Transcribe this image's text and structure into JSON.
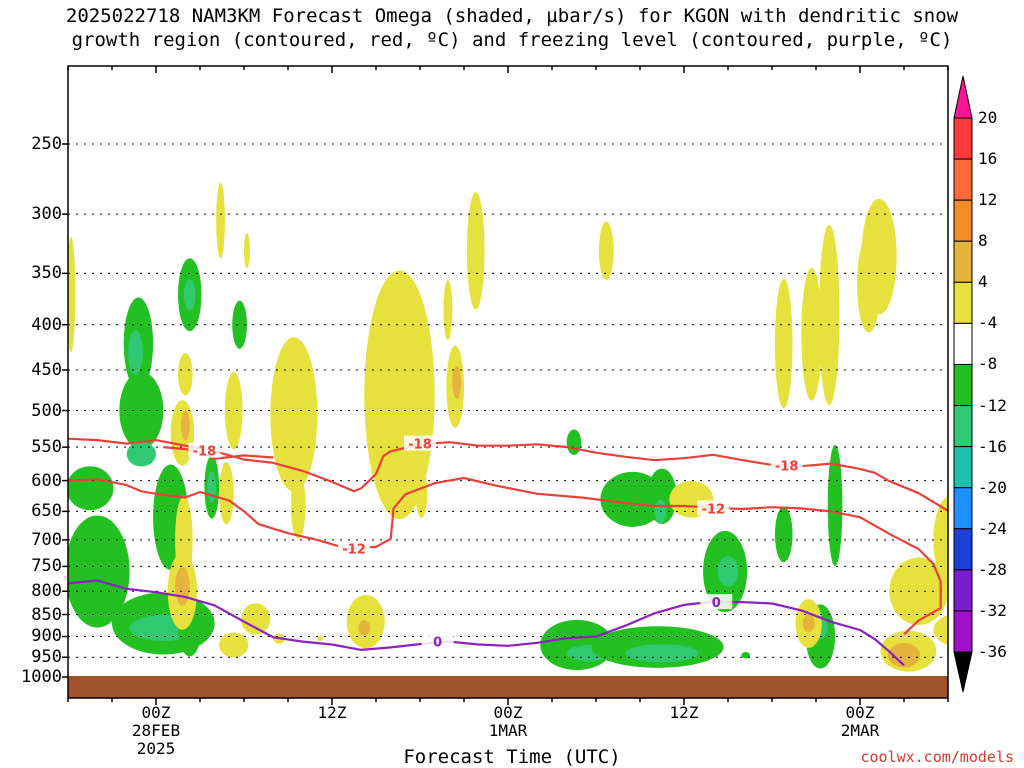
{
  "title": {
    "line1": "2025022718 NAM3KM Forecast Omega (shaded, µbar/s) for KGON with dendritic snow",
    "line2": "growth region (contoured, red, ºC) and freezing level (contoured, purple, ºC)"
  },
  "xaxis": {
    "label": "Forecast Time (UTC)",
    "ticks": [
      {
        "hour": 6,
        "lines": [
          "00Z",
          "28FEB",
          "2025"
        ]
      },
      {
        "hour": 18,
        "lines": [
          "12Z",
          "",
          ""
        ]
      },
      {
        "hour": 30,
        "lines": [
          "00Z",
          "1MAR",
          ""
        ]
      },
      {
        "hour": 42,
        "lines": [
          "12Z",
          "",
          ""
        ]
      },
      {
        "hour": 54,
        "lines": [
          "00Z",
          "2MAR",
          ""
        ]
      }
    ]
  },
  "yaxis": {
    "ticks": [
      "250",
      "300",
      "350",
      "400",
      "450",
      "500",
      "550",
      "600",
      "650",
      "700",
      "750",
      "800",
      "850",
      "900",
      "950",
      "1000"
    ],
    "tick_values": [
      250,
      300,
      350,
      400,
      450,
      500,
      550,
      600,
      650,
      700,
      750,
      800,
      850,
      900,
      950,
      1000
    ]
  },
  "credit": "coolwx.com/models",
  "colorbar": {
    "labels": [
      "20",
      "16",
      "12",
      "8",
      "4",
      "-4",
      "-8",
      "-12",
      "-16",
      "-20",
      "-24",
      "-28",
      "-32",
      "-36"
    ],
    "colors": [
      "#ff1493",
      "#ff3b3b",
      "#ff6a3a",
      "#f28c28",
      "#e6b43c",
      "#e6e13c",
      "#ffffff",
      "#22c020",
      "#30c870",
      "#20c0b0",
      "#1e90ff",
      "#1e40d8",
      "#7a1fd0",
      "#a010c8",
      "#9a9a9a",
      "#000000"
    ]
  },
  "chart_data": {
    "type": "heatmap",
    "x_unit": "forecast hour",
    "x_range": [
      0,
      60
    ],
    "y_unit": "hPa",
    "y_range": [
      1000,
      200
    ],
    "ground_color": "#a0522d",
    "contour_labels": [
      "-18",
      "-18",
      "-18",
      "-12",
      "-12",
      "0",
      "0"
    ],
    "contours": [
      {
        "color": "#e8403a",
        "values": [
          -18
        ],
        "points": [
          [
            0,
            538
          ],
          [
            2,
            540
          ],
          [
            4,
            545
          ],
          [
            6,
            540
          ],
          [
            8,
            548
          ],
          [
            10,
            556
          ],
          [
            12,
            568
          ],
          [
            14,
            573
          ],
          [
            16,
            585
          ],
          [
            18,
            602
          ],
          [
            19.5,
            617
          ],
          [
            20,
            612
          ],
          [
            21,
            590
          ],
          [
            21.5,
            563
          ],
          [
            22,
            556
          ],
          [
            24,
            546
          ],
          [
            26,
            543
          ],
          [
            28,
            548
          ],
          [
            30,
            548
          ],
          [
            32,
            546
          ],
          [
            34,
            550
          ],
          [
            36,
            558
          ],
          [
            38,
            564
          ],
          [
            40,
            569
          ],
          [
            42,
            566
          ],
          [
            44,
            561
          ],
          [
            46,
            569
          ],
          [
            48,
            576
          ],
          [
            50,
            578
          ],
          [
            52,
            574
          ],
          [
            54,
            582
          ],
          [
            55,
            588
          ],
          [
            56,
            601
          ],
          [
            58,
            620
          ],
          [
            60,
            649
          ]
        ],
        "labels": [
          [
            24,
            545
          ],
          [
            49,
            577
          ]
        ]
      },
      {
        "color": "#e8403a",
        "values": [
          -18
        ],
        "points": [
          [
            6.5,
            550
          ],
          [
            8.5,
            554
          ],
          [
            10,
            567
          ],
          [
            12,
            562
          ],
          [
            14,
            565
          ]
        ],
        "labels": [
          [
            9.3,
            555
          ]
        ]
      },
      {
        "color": "#e8403a",
        "values": [
          -12
        ],
        "points": [
          [
            0,
            600
          ],
          [
            2,
            598
          ],
          [
            4,
            607
          ],
          [
            5,
            617
          ],
          [
            6,
            621
          ],
          [
            8,
            627
          ],
          [
            9,
            618
          ],
          [
            11,
            632
          ],
          [
            12,
            650
          ],
          [
            13,
            672
          ],
          [
            15,
            688
          ],
          [
            17,
            700
          ],
          [
            19,
            716
          ],
          [
            21,
            713
          ],
          [
            22,
            698
          ],
          [
            22.2,
            645
          ],
          [
            23,
            622
          ],
          [
            25,
            604
          ],
          [
            27,
            596
          ],
          [
            29,
            607
          ],
          [
            32,
            621
          ],
          [
            35,
            627
          ],
          [
            38,
            636
          ],
          [
            40,
            641
          ],
          [
            42,
            641
          ],
          [
            44,
            644
          ],
          [
            46,
            646
          ],
          [
            48,
            643
          ],
          [
            50,
            645
          ],
          [
            52,
            650
          ],
          [
            54,
            660
          ],
          [
            56,
            689
          ],
          [
            58,
            717
          ],
          [
            59,
            745
          ],
          [
            59.5,
            780
          ],
          [
            59.5,
            836
          ],
          [
            58,
            863
          ],
          [
            57,
            895
          ]
        ],
        "labels": [
          [
            19.5,
            716
          ],
          [
            44,
            645
          ]
        ]
      },
      {
        "color": "#8d20c0",
        "values": [
          0
        ],
        "points": [
          [
            0,
            784
          ],
          [
            2,
            778
          ],
          [
            4,
            795
          ],
          [
            6,
            802
          ],
          [
            8,
            812
          ],
          [
            10,
            830
          ],
          [
            12,
            866
          ],
          [
            14,
            902
          ],
          [
            16,
            912
          ],
          [
            18,
            919
          ],
          [
            20,
            932
          ],
          [
            22,
            926
          ],
          [
            24,
            918
          ],
          [
            26,
            912
          ],
          [
            28,
            919
          ],
          [
            30,
            922
          ],
          [
            32,
            915
          ],
          [
            34,
            904
          ],
          [
            36,
            900
          ],
          [
            38,
            875
          ],
          [
            40,
            847
          ],
          [
            42,
            829
          ],
          [
            44,
            822
          ],
          [
            46,
            823
          ],
          [
            48,
            826
          ],
          [
            50,
            841
          ],
          [
            52,
            866
          ],
          [
            54,
            885
          ],
          [
            55,
            906
          ],
          [
            56,
            936
          ],
          [
            57,
            970
          ]
        ],
        "labels": [
          [
            25.2,
            912
          ],
          [
            44.2,
            823
          ]
        ]
      }
    ],
    "shaded_regions": [
      {
        "level": "-8",
        "color": "#22c020",
        "cx": 1.5,
        "cy": 612,
        "rx": 1.6,
        "ry": 35
      },
      {
        "level": "-8",
        "color": "#22c020",
        "cx": 2,
        "cy": 760,
        "rx": 2.2,
        "ry": 110
      },
      {
        "level": "-8",
        "color": "#22c020",
        "cx": 5,
        "cy": 500,
        "rx": 1.5,
        "ry": 50
      },
      {
        "level": "-12",
        "color": "#30c870",
        "cx": 5,
        "cy": 560,
        "rx": 1.0,
        "ry": 18
      },
      {
        "level": "-8",
        "color": "#22c020",
        "cx": 7,
        "cy": 660,
        "rx": 1.2,
        "ry": 90
      },
      {
        "level": "-8",
        "color": "#22c020",
        "cx": 6.5,
        "cy": 870,
        "rx": 3.5,
        "ry": 70
      },
      {
        "level": "-12",
        "color": "#30c870",
        "cx": 6.5,
        "cy": 880,
        "rx": 2.3,
        "ry": 30
      },
      {
        "level": "-8",
        "color": "#22c020",
        "cx": 4.8,
        "cy": 420,
        "rx": 1.0,
        "ry": 50
      },
      {
        "level": "-12",
        "color": "#30c870",
        "cx": 4.6,
        "cy": 430,
        "rx": 0.5,
        "ry": 25
      },
      {
        "level": "-8",
        "color": "#22c020",
        "cx": 8.3,
        "cy": 880,
        "rx": 0.8,
        "ry": 65
      },
      {
        "level": "-8",
        "color": "#22c020",
        "cx": 8.3,
        "cy": 370,
        "rx": 0.8,
        "ry": 35
      },
      {
        "level": "-12",
        "color": "#30c870",
        "cx": 8.3,
        "cy": 370,
        "rx": 0.4,
        "ry": 15
      },
      {
        "level": "-8",
        "color": "#22c020",
        "cx": 9.8,
        "cy": 610,
        "rx": 0.5,
        "ry": 50
      },
      {
        "level": "-12",
        "color": "#30c870",
        "cx": 9.8,
        "cy": 610,
        "rx": 0.3,
        "ry": 25
      },
      {
        "level": "-8",
        "color": "#22c020",
        "cx": 11.7,
        "cy": 400,
        "rx": 0.5,
        "ry": 25
      },
      {
        "level": "-8",
        "color": "#22c020",
        "cx": 25.3,
        "cy": 915,
        "rx": 0.2,
        "ry": 5
      },
      {
        "level": "-8",
        "color": "#22c020",
        "cx": 34.5,
        "cy": 543,
        "rx": 0.5,
        "ry": 18
      },
      {
        "level": "-8",
        "color": "#22c020",
        "cx": 38.5,
        "cy": 630,
        "rx": 2.2,
        "ry": 45
      },
      {
        "level": "-8",
        "color": "#22c020",
        "cx": 40.5,
        "cy": 625,
        "rx": 1.0,
        "ry": 45
      },
      {
        "level": "-12",
        "color": "#30c870",
        "cx": 40.4,
        "cy": 650,
        "rx": 0.4,
        "ry": 20
      },
      {
        "level": "-8",
        "color": "#22c020",
        "cx": 34.7,
        "cy": 920,
        "rx": 2.5,
        "ry": 60
      },
      {
        "level": "-12",
        "color": "#30c870",
        "cx": 35.5,
        "cy": 940,
        "rx": 1.5,
        "ry": 20
      },
      {
        "level": "-8",
        "color": "#22c020",
        "cx": 40.2,
        "cy": 925,
        "rx": 4.5,
        "ry": 50
      },
      {
        "level": "-12",
        "color": "#30c870",
        "cx": 40.5,
        "cy": 940,
        "rx": 2.5,
        "ry": 22
      },
      {
        "level": "-8",
        "color": "#22c020",
        "cx": 44.8,
        "cy": 760,
        "rx": 1.5,
        "ry": 80
      },
      {
        "level": "-12",
        "color": "#30c870",
        "cx": 45,
        "cy": 760,
        "rx": 0.7,
        "ry": 30
      },
      {
        "level": "-8",
        "color": "#22c020",
        "cx": 46.2,
        "cy": 945,
        "rx": 0.3,
        "ry": 8
      },
      {
        "level": "-8",
        "color": "#22c020",
        "cx": 48.8,
        "cy": 690,
        "rx": 0.6,
        "ry": 50
      },
      {
        "level": "-8",
        "color": "#22c020",
        "cx": 52.3,
        "cy": 640,
        "rx": 0.5,
        "ry": 100
      },
      {
        "level": "-8",
        "color": "#22c020",
        "cx": 51.3,
        "cy": 900,
        "rx": 1.0,
        "ry": 75
      },
      {
        "level": "-12",
        "color": "#30c870",
        "cx": 51.3,
        "cy": 880,
        "rx": 0.5,
        "ry": 25
      },
      {
        "level": "4",
        "color": "#e6e13c",
        "cx": 0.2,
        "cy": 370,
        "rx": 0.3,
        "ry": 55
      },
      {
        "level": "4",
        "color": "#e6e13c",
        "cx": 7.8,
        "cy": 530,
        "rx": 0.8,
        "ry": 45
      },
      {
        "level": "4",
        "color": "#e6e13c",
        "cx": 7.9,
        "cy": 700,
        "rx": 0.6,
        "ry": 80
      },
      {
        "level": "8",
        "color": "#e6b43c",
        "cx": 8,
        "cy": 520,
        "rx": 0.3,
        "ry": 20
      },
      {
        "level": "4",
        "color": "#e6e13c",
        "cx": 8,
        "cy": 455,
        "rx": 0.5,
        "ry": 25
      },
      {
        "level": "4",
        "color": "#e6e13c",
        "cx": 10.4,
        "cy": 305,
        "rx": 0.3,
        "ry": 30
      },
      {
        "level": "4",
        "color": "#e6e13c",
        "cx": 12.2,
        "cy": 330,
        "rx": 0.2,
        "ry": 15
      },
      {
        "level": "4",
        "color": "#e6e13c",
        "cx": 7.8,
        "cy": 800,
        "rx": 1.0,
        "ry": 80
      },
      {
        "level": "8",
        "color": "#e6b43c",
        "cx": 7.8,
        "cy": 790,
        "rx": 0.5,
        "ry": 40
      },
      {
        "level": "4",
        "color": "#e6e13c",
        "cx": 10.8,
        "cy": 620,
        "rx": 0.5,
        "ry": 50
      },
      {
        "level": "4",
        "color": "#e6e13c",
        "cx": 11.3,
        "cy": 500,
        "rx": 0.6,
        "ry": 50
      },
      {
        "level": "4",
        "color": "#e6e13c",
        "cx": 11.3,
        "cy": 920,
        "rx": 1.0,
        "ry": 30
      },
      {
        "level": "4",
        "color": "#e6e13c",
        "cx": 12.8,
        "cy": 860,
        "rx": 1.0,
        "ry": 35
      },
      {
        "level": "4",
        "color": "#e6e13c",
        "cx": 15.4,
        "cy": 505,
        "rx": 1.6,
        "ry": 100
      },
      {
        "level": "4",
        "color": "#e6e13c",
        "cx": 15.7,
        "cy": 640,
        "rx": 0.5,
        "ry": 55
      },
      {
        "level": "4",
        "color": "#e6e13c",
        "cx": 14.4,
        "cy": 905,
        "rx": 0.4,
        "ry": 12
      },
      {
        "level": "4",
        "color": "#e6e13c",
        "cx": 17.2,
        "cy": 905,
        "rx": 0.2,
        "ry": 6
      },
      {
        "level": "4",
        "color": "#e6e13c",
        "cx": 20.3,
        "cy": 866,
        "rx": 1.3,
        "ry": 60
      },
      {
        "level": "8",
        "color": "#e6b43c",
        "cx": 20.2,
        "cy": 880,
        "rx": 0.4,
        "ry": 18
      },
      {
        "level": "4",
        "color": "#e6e13c",
        "cx": 22.6,
        "cy": 480,
        "rx": 2.4,
        "ry": 150
      },
      {
        "level": "4",
        "color": "#e6e13c",
        "cx": 24.1,
        "cy": 620,
        "rx": 0.4,
        "ry": 40
      },
      {
        "level": "4",
        "color": "#e6e13c",
        "cx": 26.4,
        "cy": 470,
        "rx": 0.6,
        "ry": 50
      },
      {
        "level": "8",
        "color": "#e6b43c",
        "cx": 26.5,
        "cy": 465,
        "rx": 0.3,
        "ry": 20
      },
      {
        "level": "4",
        "color": "#e6e13c",
        "cx": 25.9,
        "cy": 385,
        "rx": 0.3,
        "ry": 30
      },
      {
        "level": "4",
        "color": "#e6e13c",
        "cx": 27.8,
        "cy": 330,
        "rx": 0.6,
        "ry": 50
      },
      {
        "level": "4",
        "color": "#e6e13c",
        "cx": 36.7,
        "cy": 330,
        "rx": 0.5,
        "ry": 25
      },
      {
        "level": "4",
        "color": "#e6e13c",
        "cx": 42.5,
        "cy": 630,
        "rx": 1.5,
        "ry": 30
      },
      {
        "level": "4",
        "color": "#e6e13c",
        "cx": 48.8,
        "cy": 420,
        "rx": 0.6,
        "ry": 70
      },
      {
        "level": "4",
        "color": "#e6e13c",
        "cx": 50.7,
        "cy": 410,
        "rx": 0.7,
        "ry": 70
      },
      {
        "level": "4",
        "color": "#e6e13c",
        "cx": 51.9,
        "cy": 390,
        "rx": 0.7,
        "ry": 90
      },
      {
        "level": "4",
        "color": "#e6e13c",
        "cx": 55.3,
        "cy": 335,
        "rx": 1.2,
        "ry": 50
      },
      {
        "level": "4",
        "color": "#e6e13c",
        "cx": 54.6,
        "cy": 360,
        "rx": 0.8,
        "ry": 45
      },
      {
        "level": "4",
        "color": "#e6e13c",
        "cx": 50.5,
        "cy": 870,
        "rx": 0.9,
        "ry": 55
      },
      {
        "level": "8",
        "color": "#e6b43c",
        "cx": 50.5,
        "cy": 870,
        "rx": 0.4,
        "ry": 20
      },
      {
        "level": "4",
        "color": "#e6e13c",
        "cx": 58,
        "cy": 800,
        "rx": 2.0,
        "ry": 70
      },
      {
        "level": "4",
        "color": "#e6e13c",
        "cx": 60.2,
        "cy": 700,
        "rx": 1.2,
        "ry": 80
      },
      {
        "level": "4",
        "color": "#e6e13c",
        "cx": 57.3,
        "cy": 935,
        "rx": 1.9,
        "ry": 50
      },
      {
        "level": "8",
        "color": "#e6b43c",
        "cx": 57,
        "cy": 945,
        "rx": 1.1,
        "ry": 30
      },
      {
        "level": "4",
        "color": "#e6e13c",
        "cx": 61,
        "cy": 885,
        "rx": 2.0,
        "ry": 40
      }
    ]
  }
}
